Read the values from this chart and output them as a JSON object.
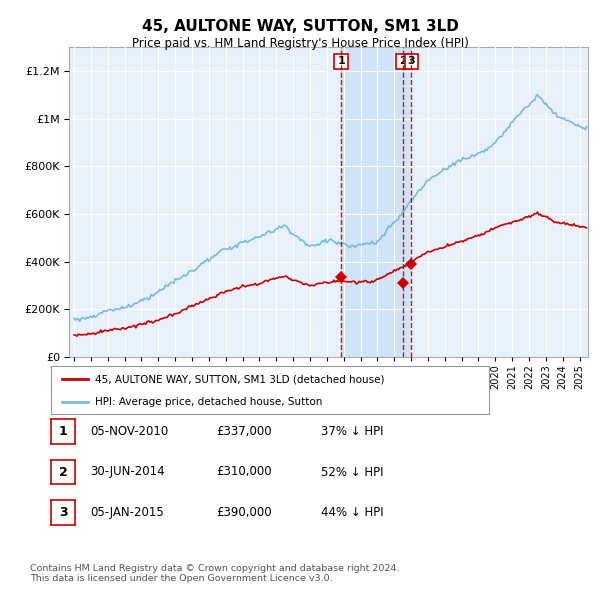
{
  "title": "45, AULTONE WAY, SUTTON, SM1 3LD",
  "subtitle": "Price paid vs. HM Land Registry's House Price Index (HPI)",
  "legend_line1": "45, AULTONE WAY, SUTTON, SM1 3LD (detached house)",
  "legend_line2": "HPI: Average price, detached house, Sutton",
  "transactions": [
    {
      "label": "1",
      "date": "05-NOV-2010",
      "price": 337000,
      "pct": "37% ↓ HPI",
      "year": 2010.85
    },
    {
      "label": "2",
      "date": "30-JUN-2014",
      "price": 310000,
      "pct": "52% ↓ HPI",
      "year": 2014.5
    },
    {
      "label": "3",
      "date": "05-JAN-2015",
      "price": 390000,
      "pct": "44% ↓ HPI",
      "year": 2015.02
    }
  ],
  "footer": "Contains HM Land Registry data © Crown copyright and database right 2024.\nThis data is licensed under the Open Government Licence v3.0.",
  "hpi_color": "#7ab8e8",
  "price_color": "#cc0000",
  "marker_color": "#cc0000",
  "vline_color": "#cc0000",
  "background_color": "#ffffff",
  "plot_bg_color": "#e8f0fa",
  "shade_color": "#d0e4f7",
  "grid_color": "#cccccc",
  "ylim": [
    0,
    1300000
  ],
  "xlim": [
    1994.7,
    2025.5
  ]
}
